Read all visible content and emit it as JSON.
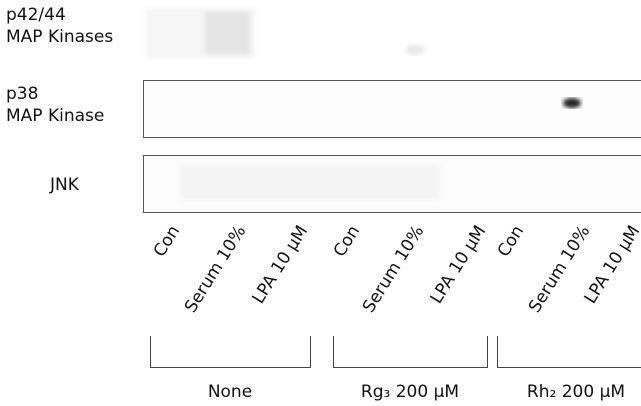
{
  "rows": [
    {
      "label": [
        "p42/44",
        "MAP Kinases"
      ]
    },
    {
      "label": [
        "p38",
        "MAP Kinase"
      ]
    },
    {
      "label": [
        "JNK"
      ]
    }
  ],
  "groups": [
    {
      "label": "None",
      "lanes": [
        "Con",
        "Serum 10%",
        "LPA 10 μM"
      ]
    },
    {
      "label": "Rg₃ 200 μM",
      "lanes": [
        "Con",
        "Serum 10%",
        "LPA 10 μM"
      ]
    },
    {
      "label": "Rh₂ 200 μM",
      "lanes": [
        "Con",
        "Serum 10%",
        "LPA 10 μM"
      ]
    }
  ]
}
